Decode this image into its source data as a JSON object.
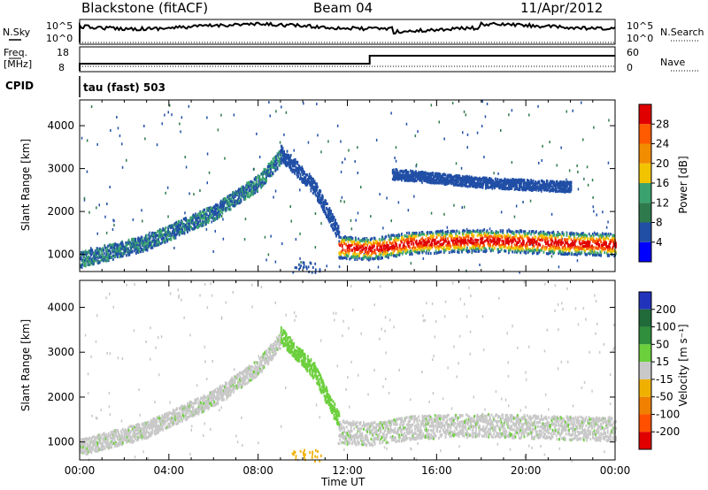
{
  "header": {
    "station": "Blackstone (fitACF)",
    "beam": "Beam 04",
    "date": "11/Apr/2012"
  },
  "strip": {
    "nsky_label": "N.Sky",
    "nsky_ticks": [
      "10^5",
      "10^0"
    ],
    "nsearch_label": "N.Search",
    "nsearch_ticks": [
      "10^5",
      "10^0"
    ],
    "freq_label": "Freq.",
    "freq_unit": "[MHz]",
    "freq_ticks": [
      "18",
      "8"
    ],
    "nave_label": "Nave",
    "nave_ticks": [
      "60",
      "0"
    ],
    "cpid_label": "CPID",
    "cpid_value": "tau (fast) 503"
  },
  "colors": {
    "power_scale": [
      "#0000ff",
      "#214fa6",
      "#2e7a4c",
      "#3aa26e",
      "#f2c400",
      "#f28c00",
      "#ff5a00",
      "#e00000"
    ],
    "velocity_scale": [
      "#2233bb",
      "#216a3a",
      "#2f8f3c",
      "#6ccf3c",
      "#c8c8c8",
      "#f0b000",
      "#f08000",
      "#ff5000",
      "#e00000"
    ]
  },
  "chart_data": [
    {
      "type": "heatmap",
      "panel": "power",
      "ylabel": "Slant Range [km]",
      "ylim": [
        600,
        4600
      ],
      "yticks": [
        "1000",
        "2000",
        "3000",
        "4000"
      ],
      "xlim": [
        0,
        24
      ],
      "colorbar_label": "Power [dB]",
      "colorbar_ticks": [
        "4",
        "8",
        "12",
        "16",
        "20",
        "24",
        "28"
      ],
      "bands": [
        {
          "name": "rising",
          "x": [
            0,
            3,
            6,
            8,
            9
          ],
          "y": [
            900,
            1300,
            2000,
            2700,
            3300
          ],
          "value": "blue-green"
        },
        {
          "name": "falling",
          "x": [
            9,
            10.5,
            11.6
          ],
          "y": [
            3400,
            2600,
            1500
          ],
          "value": "blue"
        },
        {
          "name": "main",
          "x": [
            11.6,
            13,
            15,
            18,
            21,
            24
          ],
          "y": [
            1200,
            1150,
            1300,
            1350,
            1300,
            1250
          ],
          "value": "red-orange"
        },
        {
          "name": "upper",
          "x": [
            14,
            16,
            18,
            20,
            22
          ],
          "y": [
            2900,
            2800,
            2700,
            2650,
            2600
          ],
          "value": "blue"
        }
      ]
    },
    {
      "type": "heatmap",
      "panel": "velocity",
      "ylabel": "Slant Range [km]",
      "ylim": [
        600,
        4600
      ],
      "yticks": [
        "1000",
        "2000",
        "3000",
        "4000"
      ],
      "xlim": [
        0,
        24
      ],
      "xticks": [
        "00:00",
        "04:00",
        "08:00",
        "12:00",
        "16:00",
        "20:00",
        "00:00"
      ],
      "xlabel": "Time UT",
      "colorbar_label": "Velocity [m s⁻¹]",
      "colorbar_ticks": [
        "200",
        "100",
        "50",
        "15",
        "-15",
        "-50",
        "-100",
        "-200"
      ],
      "bands": [
        {
          "name": "rising",
          "x": [
            0,
            3,
            6,
            8,
            9
          ],
          "y": [
            900,
            1300,
            2000,
            2700,
            3300
          ],
          "value": "grey"
        },
        {
          "name": "falling",
          "x": [
            9,
            10.5,
            11.6
          ],
          "y": [
            3400,
            2600,
            1500
          ],
          "value": "green"
        },
        {
          "name": "main",
          "x": [
            11.6,
            13,
            15,
            18,
            21,
            24
          ],
          "y": [
            1250,
            1200,
            1350,
            1400,
            1350,
            1300
          ],
          "value": "grey"
        }
      ]
    }
  ]
}
